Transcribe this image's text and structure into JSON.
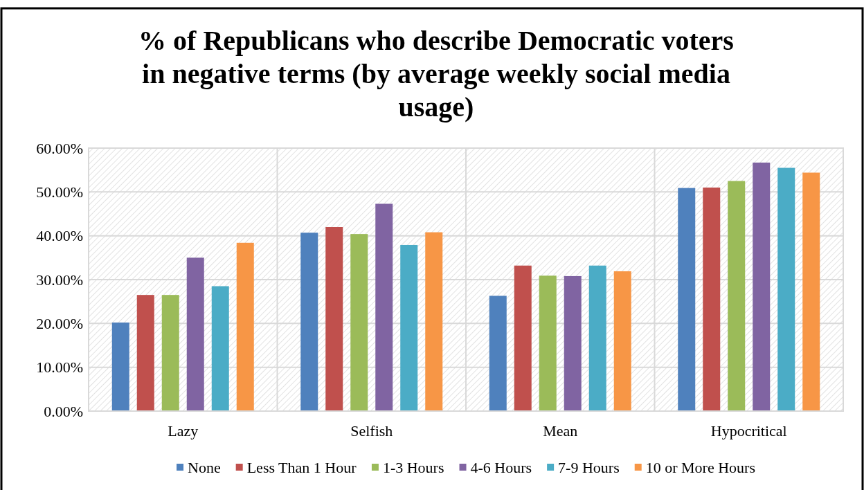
{
  "chart_data": {
    "type": "bar",
    "title": "% of Republicans who describe Democratic voters in negative terms (by average weekly social media usage)",
    "categories": [
      "Lazy",
      "Selfish",
      "Mean",
      "Hypocritical"
    ],
    "series": [
      {
        "name": "None",
        "color": "#4f81bd",
        "values": [
          20.2,
          40.7,
          26.3,
          50.9
        ]
      },
      {
        "name": "Less Than 1 Hour",
        "color": "#c0504d",
        "values": [
          26.5,
          42.0,
          33.2,
          51.0
        ]
      },
      {
        "name": "1-3 Hours",
        "color": "#9bbb59",
        "values": [
          26.5,
          40.4,
          30.9,
          52.5
        ]
      },
      {
        "name": "4-6 Hours",
        "color": "#8064a2",
        "values": [
          35.0,
          47.3,
          30.8,
          56.7
        ]
      },
      {
        "name": "7-9 Hours",
        "color": "#4bacc6",
        "values": [
          28.5,
          37.9,
          33.2,
          55.5
        ]
      },
      {
        "name": "10 or More Hours",
        "color": "#f79646",
        "values": [
          38.4,
          40.8,
          31.9,
          54.4
        ]
      }
    ],
    "ylim": [
      0,
      60
    ],
    "yticks": [
      {
        "value": 0,
        "label": "0.00%"
      },
      {
        "value": 10,
        "label": "10.00%"
      },
      {
        "value": 20,
        "label": "20.00%"
      },
      {
        "value": 30,
        "label": "30.00%"
      },
      {
        "value": 40,
        "label": "40.00%"
      },
      {
        "value": 50,
        "label": "50.00%"
      },
      {
        "value": 60,
        "label": "60.00%"
      }
    ],
    "grid": true,
    "legend": "bottom"
  }
}
